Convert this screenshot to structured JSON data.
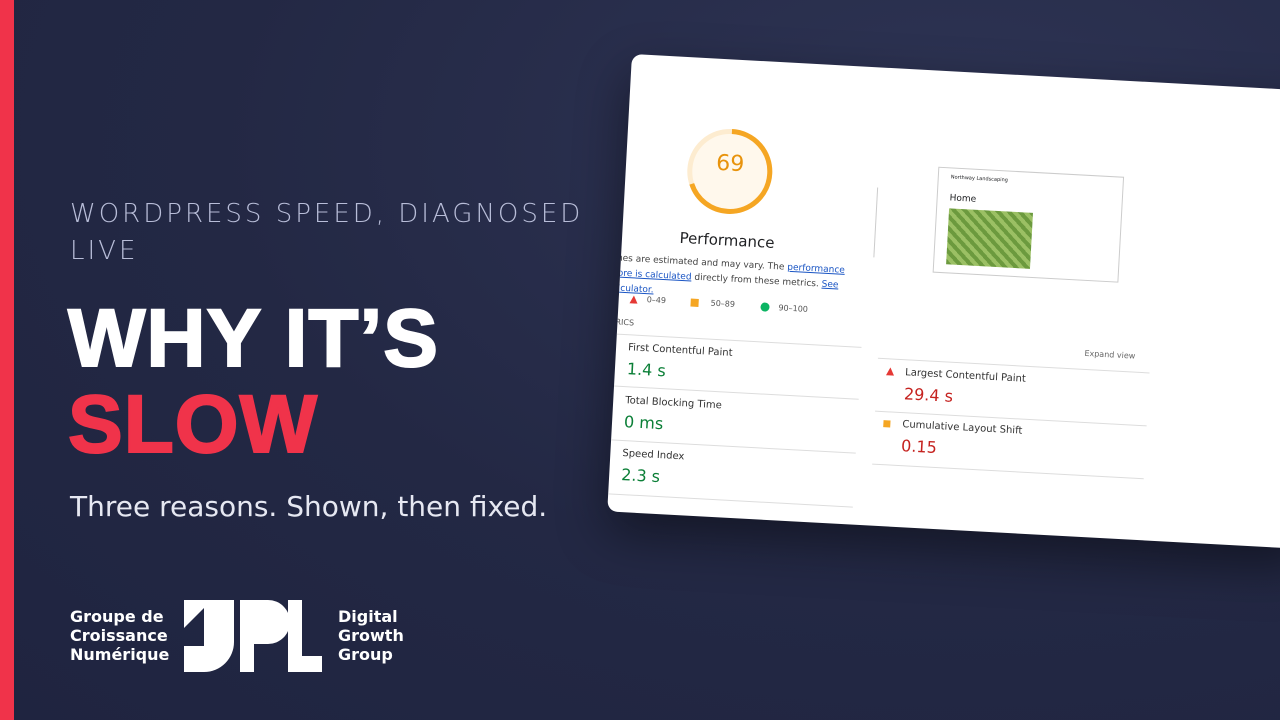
{
  "header": {
    "kicker": "WORDPRESS SPEED, DIAGNOSED LIVE",
    "title_line1": "WHY IT’S",
    "title_line2": "SLOW",
    "subtitle": "Three reasons. Shown, then fixed."
  },
  "logo": {
    "left": [
      "Groupe de",
      "Croissance",
      "Numérique"
    ],
    "right": [
      "Digital",
      "Growth",
      "Group"
    ]
  },
  "report": {
    "score": 69,
    "score_label": "Performance",
    "note": [
      "alues are estimated and may vary. The ",
      "performance score is calculated",
      " directly from these metrics. ",
      "See calculator."
    ],
    "legend": [
      "0–49",
      "50–89",
      "90–100"
    ],
    "section": "RICS",
    "expand": "Expand view",
    "metrics": [
      {
        "name": "First Contentful Paint",
        "value": "1.4 s"
      },
      {
        "name": "Total Blocking Time",
        "value": "0 ms"
      },
      {
        "name": "Speed Index",
        "value": "2.3 s"
      },
      {
        "name": "Largest Contentful Paint",
        "value": "29.4 s"
      },
      {
        "name": "Cumulative Layout Shift",
        "value": "0.15"
      }
    ],
    "preview": {
      "site": "Northway Landscaping",
      "page": "Home"
    }
  }
}
